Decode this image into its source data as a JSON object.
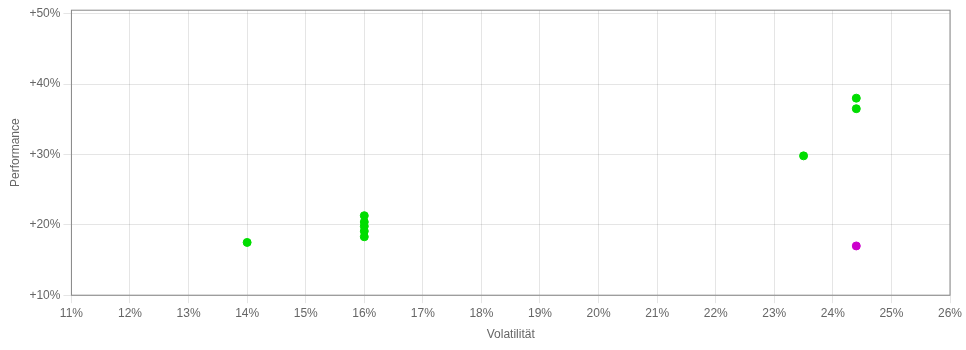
{
  "chart_data": {
    "type": "scatter",
    "xlabel": "Volatilität",
    "ylabel": "Performance",
    "series": [
      {
        "color": "#00dd00",
        "x": [
          0.14,
          0.16,
          0.16,
          0.16,
          0.16,
          0.16,
          0.235,
          0.244,
          0.244
        ],
        "values": [
          0.175,
          0.213,
          0.204,
          0.198,
          0.191,
          0.183,
          0.298,
          0.38,
          0.365
        ]
      },
      {
        "color": "#cc00cc",
        "x": [
          0.244
        ],
        "values": [
          0.17
        ]
      }
    ],
    "xlim": [
      0.11,
      0.26
    ],
    "ylim": [
      0.1,
      0.505
    ],
    "xticks": [
      {
        "value": 0.11,
        "label": "11%"
      },
      {
        "value": 0.12,
        "label": "12%"
      },
      {
        "value": 0.13,
        "label": "13%"
      },
      {
        "value": 0.14,
        "label": "14%"
      },
      {
        "value": 0.15,
        "label": "15%"
      },
      {
        "value": 0.16,
        "label": "16%"
      },
      {
        "value": 0.17,
        "label": "17%"
      },
      {
        "value": 0.18,
        "label": "18%"
      },
      {
        "value": 0.19,
        "label": "19%"
      },
      {
        "value": 0.2,
        "label": "20%"
      },
      {
        "value": 0.21,
        "label": "21%"
      },
      {
        "value": 0.22,
        "label": "22%"
      },
      {
        "value": 0.23,
        "label": "23%"
      },
      {
        "value": 0.24,
        "label": "24%"
      },
      {
        "value": 0.25,
        "label": "25%"
      },
      {
        "value": 0.26,
        "label": "26%"
      }
    ],
    "yticks": [
      {
        "value": 0.1,
        "label": "+10%"
      },
      {
        "value": 0.2,
        "label": "+20%"
      },
      {
        "value": 0.3,
        "label": "+30%"
      },
      {
        "value": 0.4,
        "label": "+40%"
      },
      {
        "value": 0.5,
        "label": "+50%"
      }
    ],
    "grid": true
  }
}
